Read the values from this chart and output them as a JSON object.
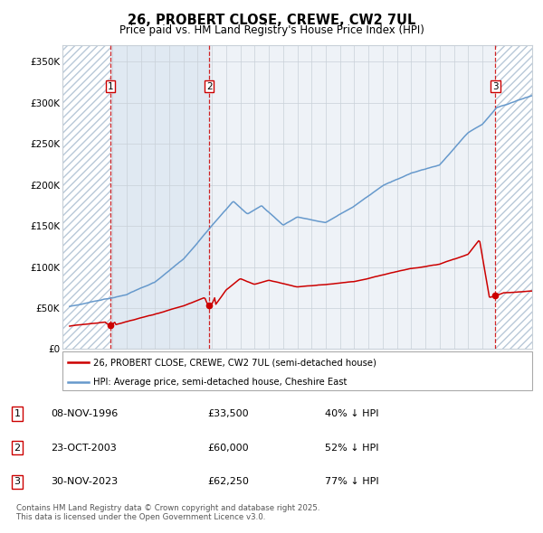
{
  "title": "26, PROBERT CLOSE, CREWE, CW2 7UL",
  "subtitle": "Price paid vs. HM Land Registry's House Price Index (HPI)",
  "legend_red": "26, PROBERT CLOSE, CREWE, CW2 7UL (semi-detached house)",
  "legend_blue": "HPI: Average price, semi-detached house, Cheshire East",
  "footer": "Contains HM Land Registry data © Crown copyright and database right 2025.\nThis data is licensed under the Open Government Licence v3.0.",
  "transactions": [
    {
      "num": 1,
      "date": "08-NOV-1996",
      "price": 33500,
      "pct": "40% ↓ HPI",
      "x_year": 1996.86
    },
    {
      "num": 2,
      "date": "23-OCT-2003",
      "price": 60000,
      "pct": "52% ↓ HPI",
      "x_year": 2003.81
    },
    {
      "num": 3,
      "date": "30-NOV-2023",
      "price": 62250,
      "pct": "77% ↓ HPI",
      "x_year": 2023.92
    }
  ],
  "xlim": [
    1993.5,
    2026.5
  ],
  "ylim": [
    0,
    370000
  ],
  "yticks": [
    0,
    50000,
    100000,
    150000,
    200000,
    250000,
    300000,
    350000
  ],
  "ytick_labels": [
    "£0",
    "£50K",
    "£100K",
    "£150K",
    "£200K",
    "£250K",
    "£300K",
    "£350K"
  ],
  "background_color": "#ffffff",
  "plot_bg_color": "#eef2f7",
  "grid_color": "#c8d0d8",
  "red_line_color": "#cc0000",
  "blue_line_color": "#6699cc",
  "dashed_line_color": "#cc0000",
  "marker_color": "#cc0000",
  "hatch_color": "#c8d8e8",
  "shaded_color": "#d8e4f0"
}
